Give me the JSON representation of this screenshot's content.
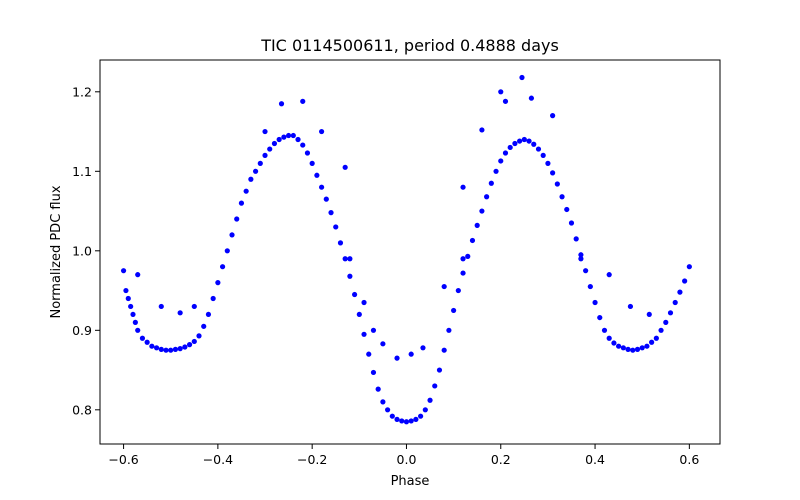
{
  "chart_data": {
    "type": "scatter",
    "title": "TIC 0114500611, period 0.4888 days",
    "xlabel": "Phase",
    "ylabel": "Normalized PDC flux",
    "xlim": [
      -0.65,
      0.665
    ],
    "ylim": [
      0.757,
      1.24
    ],
    "xticks": [
      -0.6,
      -0.4,
      -0.2,
      0.0,
      0.2,
      0.4,
      0.6
    ],
    "xtick_labels": [
      "−0.6",
      "−0.4",
      "−0.2",
      "0.0",
      "0.2",
      "0.4",
      "0.6"
    ],
    "yticks": [
      0.8,
      0.9,
      1.0,
      1.1,
      1.2
    ],
    "ytick_labels": [
      "0.8",
      "0.9",
      "1.0",
      "1.1",
      "1.2"
    ],
    "grid": false,
    "legend": "none",
    "marker_color": "#0000ff",
    "series": [
      {
        "points": [
          [
            -0.6,
            0.975
          ],
          [
            -0.595,
            0.95
          ],
          [
            -0.59,
            0.94
          ],
          [
            -0.585,
            0.93
          ],
          [
            -0.58,
            0.92
          ],
          [
            -0.575,
            0.91
          ],
          [
            -0.57,
            0.9
          ],
          [
            -0.56,
            0.89
          ],
          [
            -0.55,
            0.885
          ],
          [
            -0.54,
            0.88
          ],
          [
            -0.53,
            0.878
          ],
          [
            -0.52,
            0.876
          ],
          [
            -0.51,
            0.875
          ],
          [
            -0.5,
            0.875
          ],
          [
            -0.49,
            0.876
          ],
          [
            -0.48,
            0.877
          ],
          [
            -0.47,
            0.879
          ],
          [
            -0.46,
            0.882
          ],
          [
            -0.45,
            0.886
          ],
          [
            -0.44,
            0.893
          ],
          [
            -0.43,
            0.905
          ],
          [
            -0.42,
            0.92
          ],
          [
            -0.41,
            0.94
          ],
          [
            -0.4,
            0.96
          ],
          [
            -0.39,
            0.98
          ],
          [
            -0.38,
            1.0
          ],
          [
            -0.37,
            1.02
          ],
          [
            -0.36,
            1.04
          ],
          [
            -0.35,
            1.06
          ],
          [
            -0.34,
            1.075
          ],
          [
            -0.33,
            1.09
          ],
          [
            -0.32,
            1.1
          ],
          [
            -0.31,
            1.11
          ],
          [
            -0.3,
            1.12
          ],
          [
            -0.29,
            1.128
          ],
          [
            -0.28,
            1.135
          ],
          [
            -0.27,
            1.14
          ],
          [
            -0.26,
            1.143
          ],
          [
            -0.25,
            1.145
          ],
          [
            -0.24,
            1.145
          ],
          [
            -0.23,
            1.14
          ],
          [
            -0.22,
            1.133
          ],
          [
            -0.21,
            1.123
          ],
          [
            -0.2,
            1.11
          ],
          [
            -0.19,
            1.095
          ],
          [
            -0.18,
            1.08
          ],
          [
            -0.17,
            1.065
          ],
          [
            -0.16,
            1.048
          ],
          [
            -0.15,
            1.03
          ],
          [
            -0.14,
            1.01
          ],
          [
            -0.13,
            0.99
          ],
          [
            -0.12,
            0.968
          ],
          [
            -0.11,
            0.945
          ],
          [
            -0.1,
            0.92
          ],
          [
            -0.09,
            0.895
          ],
          [
            -0.08,
            0.87
          ],
          [
            -0.07,
            0.847
          ],
          [
            -0.06,
            0.826
          ],
          [
            -0.05,
            0.81
          ],
          [
            -0.04,
            0.8
          ],
          [
            -0.03,
            0.792
          ],
          [
            -0.02,
            0.788
          ],
          [
            -0.01,
            0.786
          ],
          [
            0.0,
            0.785
          ],
          [
            0.01,
            0.786
          ],
          [
            0.02,
            0.788
          ],
          [
            0.03,
            0.792
          ],
          [
            0.04,
            0.8
          ],
          [
            0.05,
            0.812
          ],
          [
            0.06,
            0.83
          ],
          [
            0.07,
            0.85
          ],
          [
            0.08,
            0.875
          ],
          [
            0.09,
            0.9
          ],
          [
            0.1,
            0.925
          ],
          [
            0.11,
            0.95
          ],
          [
            0.12,
            0.972
          ],
          [
            0.13,
            0.993
          ],
          [
            0.14,
            1.013
          ],
          [
            0.15,
            1.032
          ],
          [
            0.16,
            1.05
          ],
          [
            0.17,
            1.068
          ],
          [
            0.18,
            1.085
          ],
          [
            0.19,
            1.1
          ],
          [
            0.2,
            1.113
          ],
          [
            0.21,
            1.123
          ],
          [
            0.22,
            1.13
          ],
          [
            0.23,
            1.135
          ],
          [
            0.24,
            1.138
          ],
          [
            0.25,
            1.14
          ],
          [
            0.26,
            1.138
          ],
          [
            0.27,
            1.134
          ],
          [
            0.28,
            1.128
          ],
          [
            0.29,
            1.12
          ],
          [
            0.3,
            1.11
          ],
          [
            0.31,
            1.098
          ],
          [
            0.32,
            1.084
          ],
          [
            0.33,
            1.068
          ],
          [
            0.34,
            1.052
          ],
          [
            0.35,
            1.035
          ],
          [
            0.36,
            1.015
          ],
          [
            0.37,
            0.995
          ],
          [
            0.38,
            0.975
          ],
          [
            0.39,
            0.955
          ],
          [
            0.4,
            0.935
          ],
          [
            0.41,
            0.916
          ],
          [
            0.42,
            0.9
          ],
          [
            0.43,
            0.89
          ],
          [
            0.44,
            0.884
          ],
          [
            0.45,
            0.88
          ],
          [
            0.46,
            0.878
          ],
          [
            0.47,
            0.876
          ],
          [
            0.48,
            0.875
          ],
          [
            0.49,
            0.876
          ],
          [
            0.5,
            0.878
          ],
          [
            0.51,
            0.88
          ],
          [
            0.52,
            0.885
          ],
          [
            0.53,
            0.89
          ],
          [
            0.54,
            0.9
          ],
          [
            0.55,
            0.91
          ],
          [
            0.56,
            0.922
          ],
          [
            0.57,
            0.935
          ],
          [
            0.58,
            0.948
          ],
          [
            0.59,
            0.962
          ],
          [
            0.6,
            0.98
          ],
          [
            -0.265,
            1.185
          ],
          [
            -0.22,
            1.188
          ],
          [
            -0.3,
            1.15
          ],
          [
            -0.18,
            1.15
          ],
          [
            -0.13,
            1.105
          ],
          [
            -0.09,
            0.935
          ],
          [
            -0.07,
            0.9
          ],
          [
            -0.05,
            0.883
          ],
          [
            -0.02,
            0.865
          ],
          [
            0.01,
            0.87
          ],
          [
            0.035,
            0.878
          ],
          [
            0.08,
            0.955
          ],
          [
            0.12,
            1.08
          ],
          [
            0.16,
            1.152
          ],
          [
            0.2,
            1.2
          ],
          [
            0.21,
            1.188
          ],
          [
            0.245,
            1.218
          ],
          [
            0.265,
            1.192
          ],
          [
            0.31,
            1.17
          ],
          [
            0.37,
            0.99
          ],
          [
            0.43,
            0.97
          ],
          [
            0.475,
            0.93
          ],
          [
            0.515,
            0.92
          ],
          [
            -0.57,
            0.97
          ],
          [
            -0.52,
            0.93
          ],
          [
            -0.48,
            0.922
          ],
          [
            -0.45,
            0.93
          ],
          [
            0.12,
            0.99
          ],
          [
            -0.12,
            0.99
          ]
        ]
      }
    ]
  }
}
